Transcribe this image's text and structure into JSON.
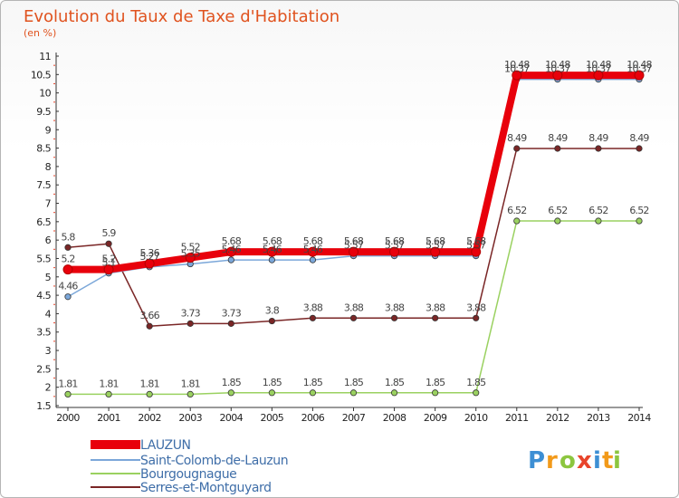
{
  "chart_data": {
    "type": "line",
    "title": "Evolution du Taux de Taxe d'Habitation",
    "subtitle": "(en %)",
    "xlabel": "",
    "ylabel": "",
    "x": [
      "2000",
      "2001",
      "2002",
      "2003",
      "2004",
      "2005",
      "2006",
      "2007",
      "2008",
      "2009",
      "2010",
      "2011",
      "2012",
      "2013",
      "2014"
    ],
    "ylim": [
      1.5,
      11
    ],
    "yticks": [
      "1.5",
      "2",
      "2.5",
      "3",
      "3.5",
      "4",
      "4.5",
      "5",
      "5.5",
      "6",
      "6.5",
      "7",
      "7.5",
      "8",
      "8.5",
      "9",
      "9.5",
      "10",
      "10.5",
      "11"
    ],
    "grid": false,
    "legend_position": "bottom-left",
    "series": [
      {
        "name": "LAUZUN",
        "color": "#e8000b",
        "values": [
          5.2,
          5.2,
          5.36,
          5.52,
          5.68,
          5.68,
          5.68,
          5.68,
          5.68,
          5.68,
          5.68,
          10.48,
          10.48,
          10.48,
          10.48
        ],
        "labels": [
          "5.2",
          "5.2",
          "5.36",
          "5.52",
          "5.68",
          "5.68",
          "5.68",
          "5.68",
          "5.68",
          "5.68",
          "5.68",
          "10.48",
          "10.48",
          "10.48",
          "10.48"
        ]
      },
      {
        "name": "Saint-Colomb-de-Lauzun",
        "color": "#7ba7d9",
        "values": [
          4.46,
          5.1,
          5.27,
          5.35,
          5.46,
          5.46,
          5.46,
          5.57,
          5.57,
          5.57,
          5.57,
          10.37,
          10.37,
          10.37,
          10.37
        ],
        "labels": [
          "4.46",
          "5.1",
          "5.27",
          "5.35",
          "5.46",
          "5.46",
          "5.46",
          "5.57",
          "5.57",
          "5.57",
          "5.57",
          "10.37",
          "10.37",
          "10.37",
          "10.37"
        ]
      },
      {
        "name": "Bourgougnague",
        "color": "#9ad160",
        "values": [
          1.81,
          1.81,
          1.81,
          1.81,
          1.85,
          1.85,
          1.85,
          1.85,
          1.85,
          1.85,
          1.85,
          6.52,
          6.52,
          6.52,
          6.52
        ],
        "labels": [
          "1.81",
          "1.81",
          "1.81",
          "1.81",
          "1.85",
          "1.85",
          "1.85",
          "1.85",
          "1.85",
          "1.85",
          "1.85",
          "6.52",
          "6.52",
          "6.52",
          "6.52"
        ]
      },
      {
        "name": "Serres-et-Montguyard",
        "color": "#7a2626",
        "values": [
          5.8,
          5.9,
          3.66,
          3.73,
          3.73,
          3.8,
          3.88,
          3.88,
          3.88,
          3.88,
          3.88,
          8.49,
          8.49,
          8.49,
          8.49
        ],
        "labels": [
          "5.8",
          "5.9",
          "3.66",
          "3.73",
          "3.73",
          "3.8",
          "3.88",
          "3.88",
          "3.88",
          "3.88",
          "3.88",
          "8.49",
          "8.49",
          "8.49",
          "8.49"
        ]
      }
    ]
  },
  "logo": {
    "text_parts": [
      "P",
      "r",
      "o",
      "x",
      "i",
      "t",
      "i"
    ],
    "colors": [
      "#3d8fd4",
      "#f29a1a",
      "#8cc63f",
      "#e8442b",
      "#3d8fd4",
      "#f29a1a",
      "#8cc63f"
    ]
  }
}
